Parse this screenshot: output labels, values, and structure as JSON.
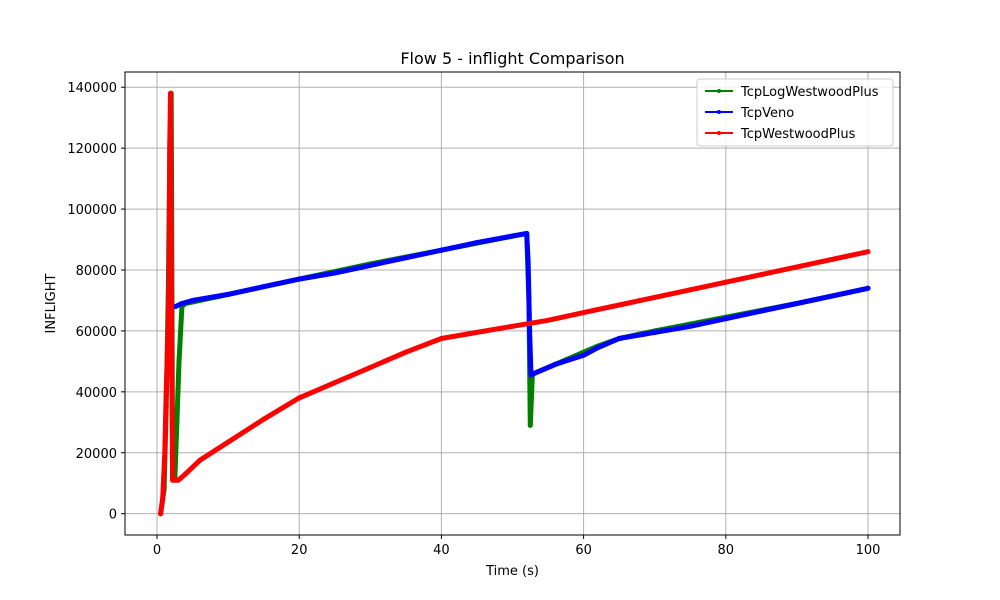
{
  "chart_data": {
    "type": "line",
    "title": "Flow 5 - inflight Comparison",
    "xlabel": "Time (s)",
    "ylabel": "INFLIGHT",
    "xlim": [
      -4.5,
      104.5
    ],
    "ylim": [
      -7000,
      145000
    ],
    "xticks": [
      0,
      20,
      40,
      60,
      80,
      100
    ],
    "yticks": [
      0,
      20000,
      40000,
      60000,
      80000,
      100000,
      120000,
      140000
    ],
    "grid": true,
    "legend_position": "top-right",
    "series": [
      {
        "name": "TcpLogWestwoodPlus",
        "color": "#008000",
        "x": [
          0.5,
          1.0,
          1.3,
          1.6,
          1.8,
          2.0,
          2.2,
          2.5,
          2.8,
          3.1,
          3.5,
          4.0,
          10,
          20,
          30,
          40,
          52.0,
          52.3,
          52.5,
          52.8,
          53.0,
          56,
          60,
          62,
          65,
          70,
          80,
          90,
          100
        ],
        "y": [
          0,
          8000,
          35000,
          75000,
          120000,
          138000,
          12000,
          11000,
          30000,
          50000,
          68000,
          69000,
          72000,
          77000,
          82000,
          86500,
          92000,
          70000,
          29000,
          46000,
          46000,
          49000,
          53000,
          55000,
          57500,
          60000,
          64500,
          69000,
          74000
        ]
      },
      {
        "name": "TcpVeno",
        "color": "#0000ff",
        "x": [
          2.6,
          3.5,
          5,
          10,
          15,
          20,
          25,
          30,
          35,
          40,
          45,
          52.0,
          52.2,
          52.4,
          52.6,
          53,
          56,
          60,
          62,
          65,
          70,
          75,
          80,
          85,
          90,
          95,
          100
        ],
        "y": [
          68000,
          69000,
          70000,
          72000,
          74500,
          77000,
          79000,
          81500,
          84000,
          86500,
          89000,
          92000,
          83000,
          60000,
          45500,
          46000,
          49000,
          52000,
          54500,
          57500,
          59500,
          61500,
          64000,
          66500,
          69000,
          71500,
          74000
        ]
      },
      {
        "name": "TcpWestwoodPlus",
        "color": "#ff0000",
        "x": [
          0.5,
          0.8,
          1.1,
          1.3,
          1.5,
          1.7,
          1.8,
          1.9,
          2.0,
          2.2,
          2.5,
          3.0,
          4.0,
          6,
          10,
          15,
          20,
          25,
          30,
          35,
          40,
          45,
          50,
          55,
          60,
          65,
          70,
          75,
          80,
          85,
          90,
          95,
          100
        ],
        "y": [
          0,
          5000,
          20000,
          40000,
          55000,
          77000,
          122000,
          138000,
          76000,
          11000,
          11000,
          11000,
          13000,
          17500,
          23500,
          31000,
          38000,
          43000,
          48000,
          53000,
          57500,
          59500,
          61500,
          63500,
          66000,
          68500,
          71000,
          73500,
          76000,
          78500,
          81000,
          83500,
          86000
        ]
      }
    ]
  }
}
